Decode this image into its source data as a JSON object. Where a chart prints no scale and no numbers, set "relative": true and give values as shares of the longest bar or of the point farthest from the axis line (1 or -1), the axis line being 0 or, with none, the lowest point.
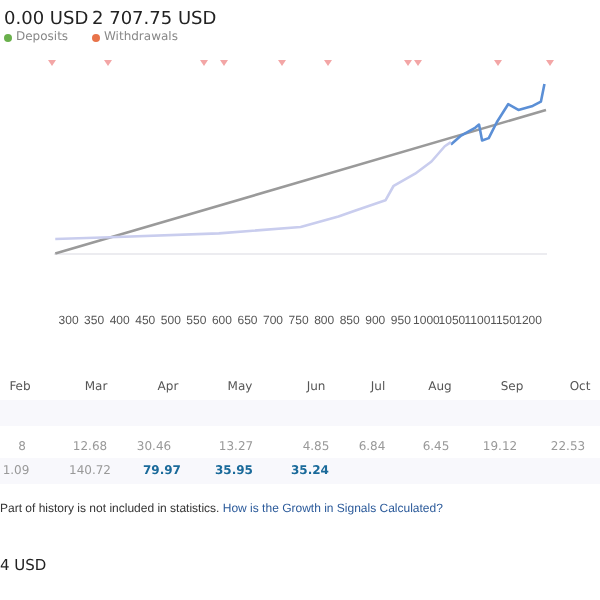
{
  "chart_data": {
    "type": "line",
    "relative": true,
    "legend": false,
    "marker": "none",
    "grid": false,
    "tick_labels": "x",
    "xlim": [
      274,
      1234
    ],
    "xticks": [
      300,
      350,
      400,
      450,
      500,
      550,
      600,
      650,
      700,
      750,
      800,
      850,
      900,
      950,
      1000,
      1050,
      1100,
      1150,
      1200
    ],
    "series": [
      {
        "color": "#c9cdee",
        "x": [
          274,
          381,
          594,
          754,
          828,
          860,
          920,
          936,
          978,
          1010,
          1036,
          1048
        ],
        "values": [
          0.086,
          0.096,
          0.119,
          0.157,
          0.219,
          0.253,
          0.314,
          0.4,
          0.471,
          0.543,
          0.633,
          0.657
        ]
      },
      {
        "color": "#5b8fd6",
        "x": [
          1048,
          1068,
          1096,
          1103,
          1109,
          1122,
          1138,
          1160,
          1180,
          1208,
          1224,
          1231
        ],
        "values": [
          0.643,
          0.696,
          0.743,
          0.761,
          0.667,
          0.681,
          0.776,
          0.881,
          0.847,
          0.871,
          0.896,
          1.0
        ]
      },
      {
        "color": "#9a9a9a",
        "x": [
          274,
          1234
        ],
        "values": [
          0,
          0.847
        ]
      }
    ],
    "annotations": [
      "0.00 USD",
      "Deposits",
      "2 707.75 USD",
      "Withdrawals",
      "Feb",
      "Mar",
      "Apr",
      "May",
      "Jun",
      "Jul",
      "Aug",
      "Sep",
      "Oct",
      "8",
      "12.68",
      "30.46",
      "13.27",
      "4.85",
      "6.84",
      "6.45",
      "19.12",
      "22.53",
      "1.09",
      "140.72",
      "79.97",
      "35.95",
      "35.24",
      "Part of history is not included in statistics.",
      "How is the Growth in Signals Calculated?",
      "4 USD"
    ]
  }
}
